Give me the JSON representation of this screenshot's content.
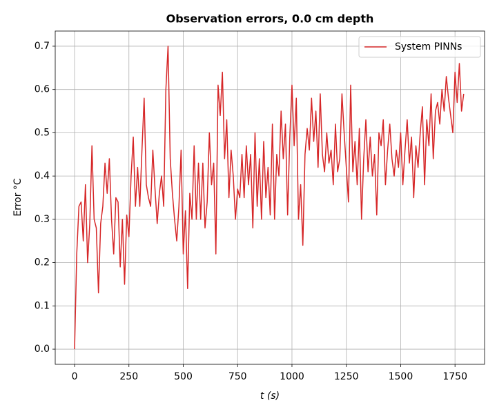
{
  "chart_data": {
    "type": "line",
    "title": "Observation errors, 0.0 cm depth",
    "xlabel": "t (s)",
    "ylabel": "Error °C",
    "x": [
      0,
      10,
      20,
      30,
      40,
      50,
      60,
      70,
      80,
      90,
      100,
      110,
      120,
      130,
      140,
      150,
      160,
      170,
      180,
      190,
      200,
      210,
      220,
      230,
      240,
      250,
      260,
      270,
      280,
      290,
      300,
      310,
      320,
      330,
      340,
      350,
      360,
      370,
      380,
      390,
      400,
      410,
      420,
      430,
      440,
      450,
      460,
      470,
      480,
      490,
      500,
      510,
      520,
      530,
      540,
      550,
      560,
      570,
      580,
      590,
      600,
      610,
      620,
      630,
      640,
      650,
      660,
      670,
      680,
      690,
      700,
      710,
      720,
      730,
      740,
      750,
      760,
      770,
      780,
      790,
      800,
      810,
      820,
      830,
      840,
      850,
      860,
      870,
      880,
      890,
      900,
      910,
      920,
      930,
      940,
      950,
      960,
      970,
      980,
      990,
      1000,
      1010,
      1020,
      1030,
      1040,
      1050,
      1060,
      1070,
      1080,
      1090,
      1100,
      1110,
      1120,
      1130,
      1140,
      1150,
      1160,
      1170,
      1180,
      1190,
      1200,
      1210,
      1220,
      1230,
      1240,
      1250,
      1260,
      1270,
      1280,
      1290,
      1300,
      1310,
      1320,
      1330,
      1340,
      1350,
      1360,
      1370,
      1380,
      1390,
      1400,
      1410,
      1420,
      1430,
      1440,
      1450,
      1460,
      1470,
      1480,
      1490,
      1500,
      1510,
      1520,
      1530,
      1540,
      1550,
      1560,
      1570,
      1580,
      1590,
      1600,
      1610,
      1620,
      1630,
      1640,
      1650,
      1660,
      1670,
      1680,
      1690,
      1700,
      1710,
      1720,
      1730,
      1740,
      1750,
      1760,
      1770,
      1780,
      1790
    ],
    "series": [
      {
        "name": "System PINNs",
        "color": "#d62728",
        "values": [
          0.0,
          0.22,
          0.33,
          0.34,
          0.25,
          0.38,
          0.2,
          0.29,
          0.47,
          0.3,
          0.28,
          0.13,
          0.29,
          0.33,
          0.43,
          0.36,
          0.44,
          0.3,
          0.22,
          0.35,
          0.34,
          0.19,
          0.3,
          0.15,
          0.31,
          0.26,
          0.4,
          0.49,
          0.33,
          0.42,
          0.33,
          0.46,
          0.58,
          0.38,
          0.35,
          0.33,
          0.46,
          0.37,
          0.29,
          0.36,
          0.4,
          0.33,
          0.6,
          0.7,
          0.44,
          0.36,
          0.3,
          0.25,
          0.33,
          0.46,
          0.22,
          0.32,
          0.14,
          0.36,
          0.3,
          0.47,
          0.3,
          0.43,
          0.3,
          0.43,
          0.28,
          0.34,
          0.5,
          0.38,
          0.43,
          0.22,
          0.61,
          0.54,
          0.64,
          0.44,
          0.53,
          0.35,
          0.46,
          0.4,
          0.3,
          0.37,
          0.35,
          0.45,
          0.35,
          0.47,
          0.38,
          0.45,
          0.28,
          0.5,
          0.33,
          0.44,
          0.3,
          0.48,
          0.35,
          0.42,
          0.31,
          0.52,
          0.3,
          0.45,
          0.4,
          0.55,
          0.44,
          0.52,
          0.31,
          0.49,
          0.61,
          0.47,
          0.58,
          0.3,
          0.38,
          0.24,
          0.45,
          0.51,
          0.46,
          0.58,
          0.48,
          0.55,
          0.42,
          0.59,
          0.45,
          0.41,
          0.5,
          0.43,
          0.46,
          0.38,
          0.52,
          0.41,
          0.44,
          0.59,
          0.5,
          0.42,
          0.34,
          0.61,
          0.41,
          0.48,
          0.38,
          0.51,
          0.3,
          0.44,
          0.53,
          0.41,
          0.49,
          0.4,
          0.45,
          0.31,
          0.5,
          0.47,
          0.53,
          0.38,
          0.46,
          0.52,
          0.44,
          0.4,
          0.46,
          0.42,
          0.5,
          0.38,
          0.46,
          0.53,
          0.43,
          0.49,
          0.35,
          0.47,
          0.42,
          0.5,
          0.56,
          0.38,
          0.53,
          0.47,
          0.59,
          0.44,
          0.55,
          0.57,
          0.52,
          0.6,
          0.55,
          0.63,
          0.58,
          0.54,
          0.5,
          0.64,
          0.57,
          0.66,
          0.55,
          0.59
        ]
      }
    ],
    "xlim": [
      -89,
      1886
    ],
    "ylim": [
      -0.035,
      0.735
    ],
    "xticks": [
      0,
      250,
      500,
      750,
      1000,
      1250,
      1500,
      1750
    ],
    "yticks": [
      {
        "value": 0,
        "label": "0.0"
      },
      0.1,
      0.2,
      0.3,
      0.4,
      0.5,
      0.6,
      0.7
    ],
    "grid": true,
    "legend": "upper right"
  }
}
